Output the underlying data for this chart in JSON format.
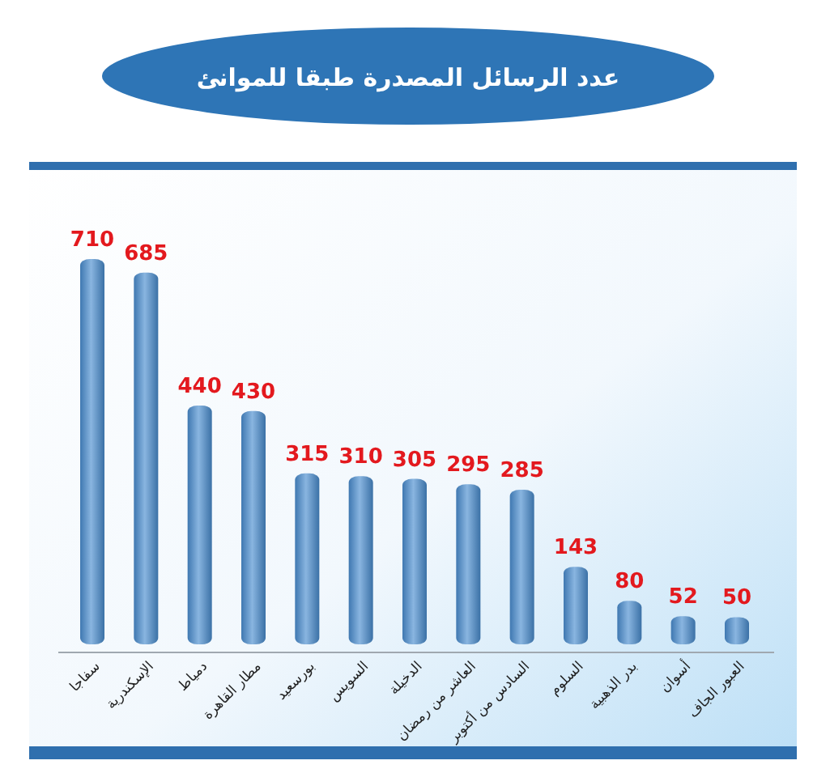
{
  "chart_data": {
    "type": "bar",
    "title": "عدد الرسائل المصدرة طبقا للموانئ",
    "categories": [
      "سفاجا",
      "الإسكندرية",
      "دمياط",
      "مطار القاهرة",
      "بورسعيد",
      "السويس",
      "الدخيلة",
      "العاشر من رمضان",
      "السادس من أكتوبر",
      "السلوم",
      "بدر الذهبية",
      "أسوان",
      "العبور الجاف"
    ],
    "values": [
      710,
      685,
      440,
      430,
      315,
      310,
      305,
      295,
      285,
      143,
      80,
      52,
      50
    ],
    "color": "#4a8dd0",
    "data_labels": true
  }
}
